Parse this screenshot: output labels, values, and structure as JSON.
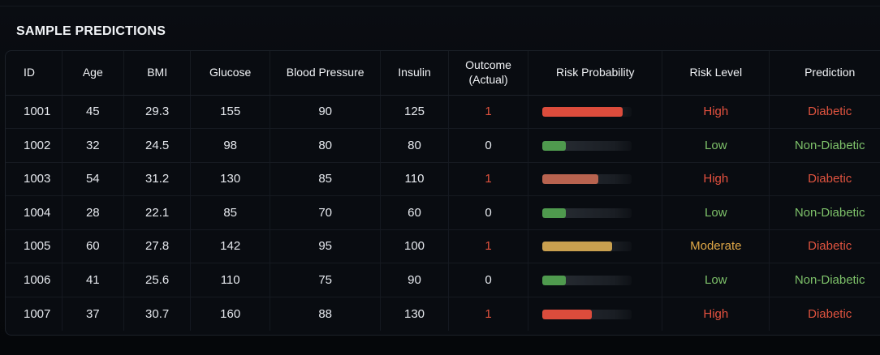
{
  "section_title": "SAMPLE PREDICTIONS",
  "colors": {
    "high": "#e5513f",
    "low": "#7ec26a",
    "moderate": "#e0a847",
    "bar_high": "#dc4c3c",
    "bar_high_muted": "#b8634f",
    "bar_low": "#4f9a4e",
    "bar_moderate": "#c9a04f"
  },
  "columns": [
    "ID",
    "Age",
    "BMI",
    "Glucose",
    "Blood Pressure",
    "Insulin",
    "Outcome (Actual)",
    "Risk Probability",
    "Risk Level",
    "Prediction"
  ],
  "rows": [
    {
      "id": "1001",
      "age": "45",
      "bmi": "29.3",
      "glucose": "155",
      "bp": "90",
      "insulin": "125",
      "outcome": "1",
      "risk_fraction": 0.9,
      "bar_color": "#dc4c3c",
      "risk_level": "High",
      "prediction": "Diabetic"
    },
    {
      "id": "1002",
      "age": "32",
      "bmi": "24.5",
      "glucose": "98",
      "bp": "80",
      "insulin": "80",
      "outcome": "0",
      "risk_fraction": 0.26,
      "bar_color": "#4f9a4e",
      "risk_level": "Low",
      "prediction": "Non-Diabetic"
    },
    {
      "id": "1003",
      "age": "54",
      "bmi": "31.2",
      "glucose": "130",
      "bp": "85",
      "insulin": "110",
      "outcome": "1",
      "risk_fraction": 0.63,
      "bar_color": "#b8634f",
      "risk_level": "High",
      "prediction": "Diabetic"
    },
    {
      "id": "1004",
      "age": "28",
      "bmi": "22.1",
      "glucose": "85",
      "bp": "70",
      "insulin": "60",
      "outcome": "0",
      "risk_fraction": 0.26,
      "bar_color": "#4f9a4e",
      "risk_level": "Low",
      "prediction": "Non-Diabetic"
    },
    {
      "id": "1005",
      "age": "60",
      "bmi": "27.8",
      "glucose": "142",
      "bp": "95",
      "insulin": "100",
      "outcome": "1",
      "risk_fraction": 0.78,
      "bar_color": "#c9a04f",
      "risk_level": "Moderate",
      "prediction": "Diabetic"
    },
    {
      "id": "1006",
      "age": "41",
      "bmi": "25.6",
      "glucose": "110",
      "bp": "75",
      "insulin": "90",
      "outcome": "0",
      "risk_fraction": 0.26,
      "bar_color": "#4f9a4e",
      "risk_level": "Low",
      "prediction": "Non-Diabetic"
    },
    {
      "id": "1007",
      "age": "37",
      "bmi": "30.7",
      "glucose": "160",
      "bp": "88",
      "insulin": "130",
      "outcome": "1",
      "risk_fraction": 0.55,
      "bar_color": "#dc4c3c",
      "risk_level": "High",
      "prediction": "Diabetic"
    }
  ]
}
